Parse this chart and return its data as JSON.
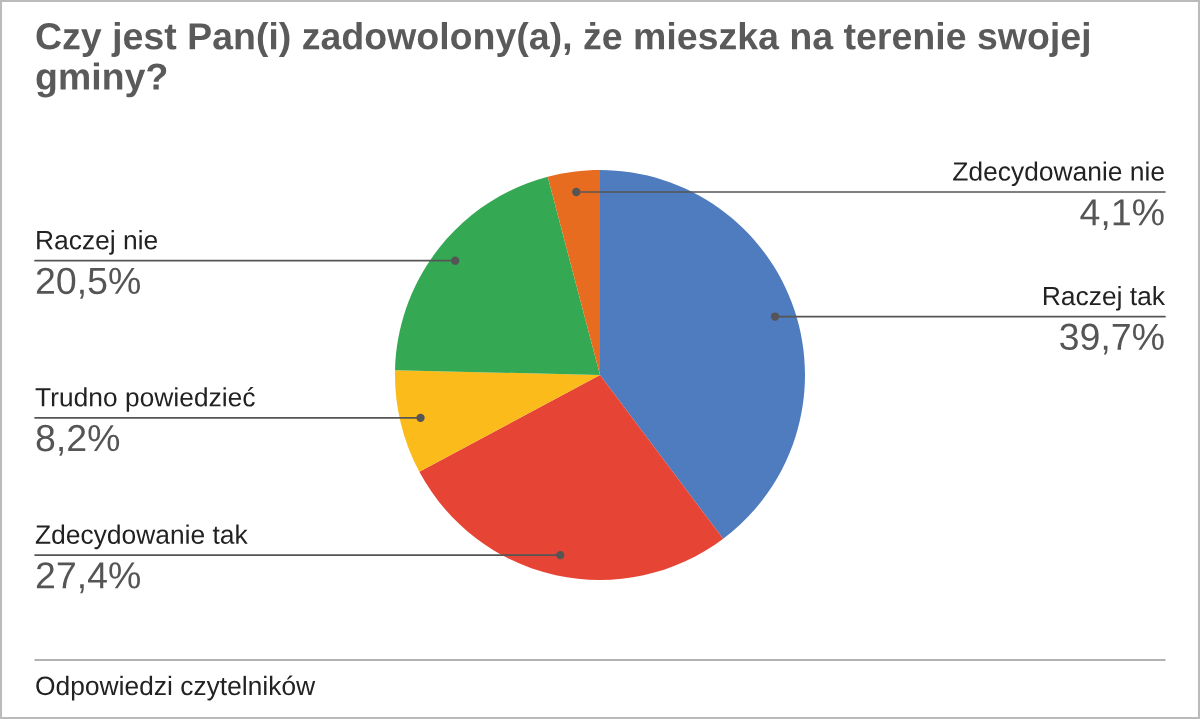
{
  "chart_data": {
    "type": "pie",
    "title": "Czy jest Pan(i) zadowolony(a), że mieszka na terenie swojej gminy?",
    "categories": [
      "Raczej tak",
      "Zdecydowanie tak",
      "Trudno powiedzieć",
      "Raczej nie",
      "Zdecydowanie nie"
    ],
    "values": [
      39.7,
      27.4,
      8.2,
      20.5,
      4.1
    ],
    "value_labels": [
      "39,7%",
      "27,4%",
      "8,2%",
      "20,5%",
      "4,1%"
    ],
    "colors": [
      "#4f7bbf",
      "#e64535",
      "#fbbb1b",
      "#35a853",
      "#e86c1f"
    ],
    "annotations": [
      "Odpowiedzi czytelników"
    ]
  }
}
